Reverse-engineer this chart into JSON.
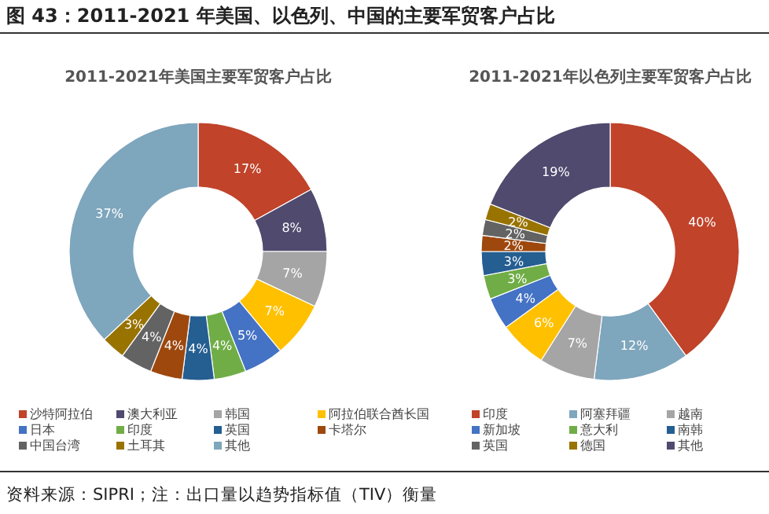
{
  "chart_data": [
    {
      "type": "donut",
      "title": "2011-2021年美国主要军贸客户占比",
      "annotations": [
        "图 43：2011-2021 年美国、以色列、中国的主要军贸客户占比",
        "资料来源：SIPRI；注：出口量以趋势指标值（TIV）衡量"
      ],
      "legend": "bottom",
      "categories": [
        "沙特阿拉伯",
        "澳大利亚",
        "韩国",
        "阿拉伯联合酋长国",
        "日本",
        "印度",
        "英国",
        "卡塔尔",
        "中国台湾",
        "土耳其",
        "其他"
      ],
      "values": [
        17,
        8,
        7,
        7,
        5,
        4,
        4,
        4,
        4,
        3,
        37
      ],
      "value_labels": [
        "17%",
        "8%",
        "7%",
        "7%",
        "5%",
        "4%",
        "4%",
        "4%",
        "4%",
        "3%",
        "37%"
      ],
      "colors": [
        "#c0432a",
        "#4f4a6e",
        "#a5a5a5",
        "#ffc000",
        "#4472c4",
        "#70ad47",
        "#255e91",
        "#9e480e",
        "#636363",
        "#997300",
        "#7ea6bd"
      ]
    },
    {
      "type": "donut",
      "title": "2011-2021年以色列主要军贸客户占比",
      "legend": "bottom",
      "categories": [
        "印度",
        "阿塞拜疆",
        "越南",
        null,
        "新加坡",
        "意大利",
        "南韩",
        null,
        "英国",
        "德国",
        "其他"
      ],
      "values": [
        40,
        12,
        7,
        6,
        4,
        3,
        3,
        2,
        2,
        2,
        19
      ],
      "value_labels": [
        "40%",
        "12%",
        "7%",
        "6%",
        "4%",
        "3%",
        "3%",
        "2%",
        "2%",
        "2%",
        "19%"
      ],
      "colors": [
        "#c0432a",
        "#7ea6bd",
        "#a5a5a5",
        "#ffc000",
        "#4472c4",
        "#70ad47",
        "#255e91",
        "#9e480e",
        "#636363",
        "#997300",
        "#4f4a6e"
      ]
    }
  ]
}
